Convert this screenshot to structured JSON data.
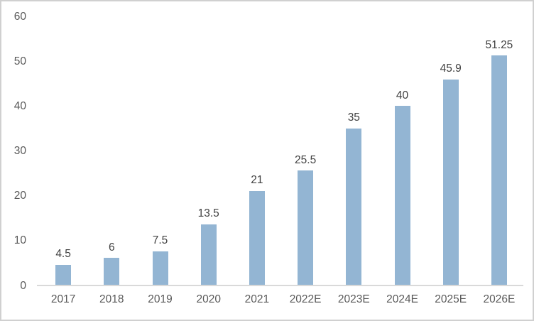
{
  "chart_data": {
    "type": "bar",
    "categories": [
      "2017",
      "2018",
      "2019",
      "2020",
      "2021",
      "2022E",
      "2023E",
      "2024E",
      "2025E",
      "2026E"
    ],
    "values": [
      4.5,
      6,
      7.5,
      13.5,
      21,
      25.5,
      35,
      40,
      45.9,
      51.25
    ],
    "data_labels": [
      "4.5",
      "6",
      "7.5",
      "13.5",
      "21",
      "25.5",
      "35",
      "40",
      "45.9",
      "51.25"
    ],
    "title": "",
    "xlabel": "",
    "ylabel": "",
    "ylim": [
      0,
      60
    ],
    "yticks": [
      0,
      10,
      20,
      30,
      40,
      50,
      60
    ],
    "grid": false,
    "legend": false,
    "colors": {
      "bar_fill": "#93B5D3",
      "data_label": "#404040",
      "tick_label": "#595959",
      "axis_line": "#D9D9D9",
      "frame_border": "#D0D0D0",
      "background": "#FFFFFF"
    }
  }
}
